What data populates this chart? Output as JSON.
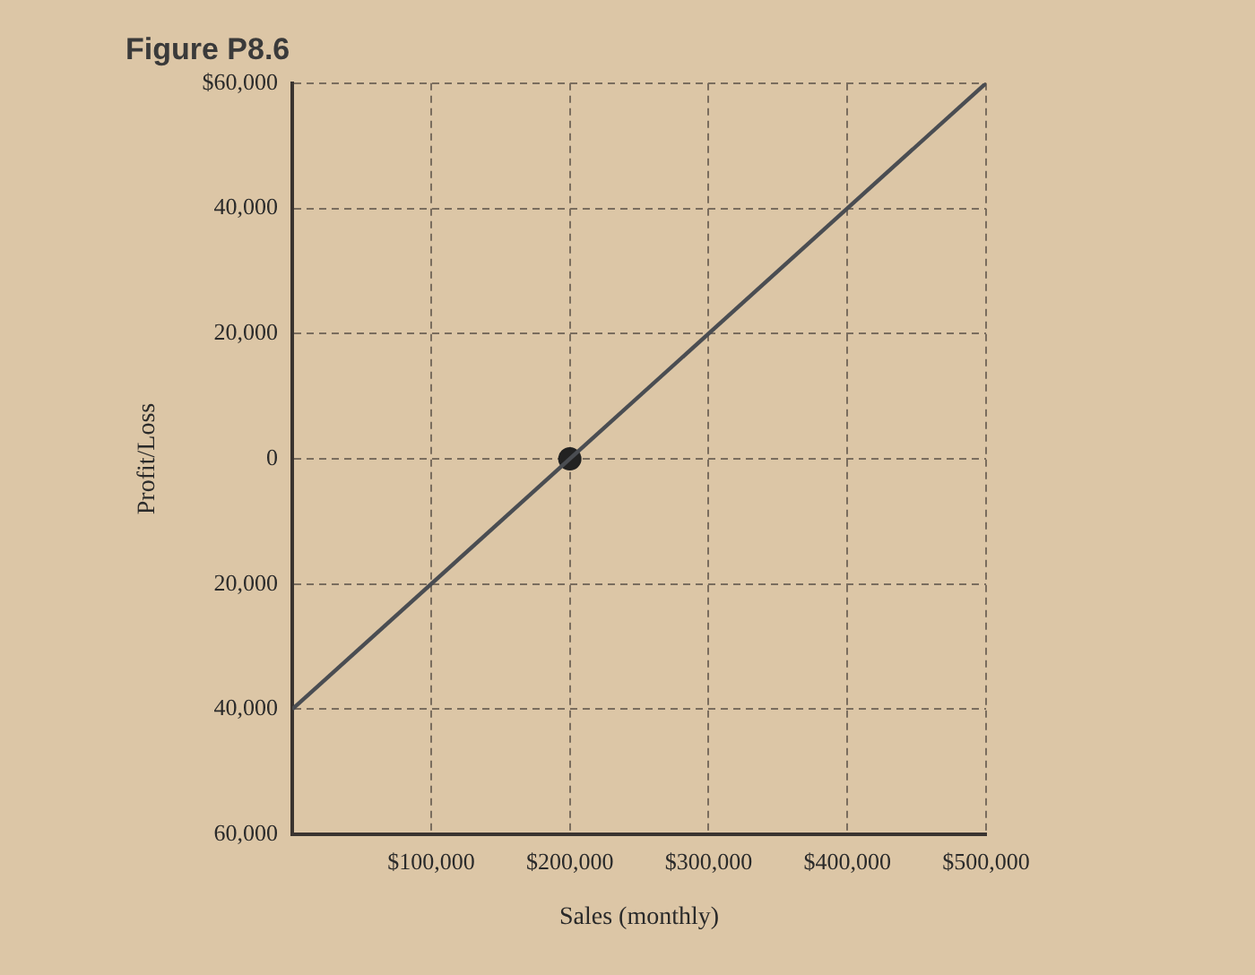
{
  "chart_data": {
    "type": "line",
    "title": "Figure P8.6",
    "xlabel": "Sales (monthly)",
    "ylabel": "Profit/Loss",
    "xlim": [
      0,
      500000
    ],
    "xticks": [
      {
        "value": 100000,
        "label": "$100,000"
      },
      {
        "value": 200000,
        "label": "$200,000"
      },
      {
        "value": 300000,
        "label": "$300,000"
      },
      {
        "value": 400000,
        "label": "$400,000"
      },
      {
        "value": 500000,
        "label": "$500,000"
      }
    ],
    "ylim": [
      -60000,
      60000
    ],
    "yticks": [
      {
        "value": -60000,
        "label": "60,000"
      },
      {
        "value": -40000,
        "label": "40,000"
      },
      {
        "value": -20000,
        "label": "20,000"
      },
      0,
      {
        "value": 20000,
        "label": "20,000"
      },
      {
        "value": 40000,
        "label": "40,000"
      },
      {
        "value": 60000,
        "label": "$60,000"
      }
    ],
    "grid": true,
    "legend": false,
    "series": [
      {
        "color": "#4a4d52",
        "x": [
          0,
          500000
        ],
        "values": [
          -40000,
          60000
        ],
        "marker": "none",
        "line_style": "solid"
      },
      {
        "type": "scatter",
        "color": "#222222",
        "x": [
          200000
        ],
        "values": [
          0
        ],
        "marker": "circle"
      }
    ]
  }
}
